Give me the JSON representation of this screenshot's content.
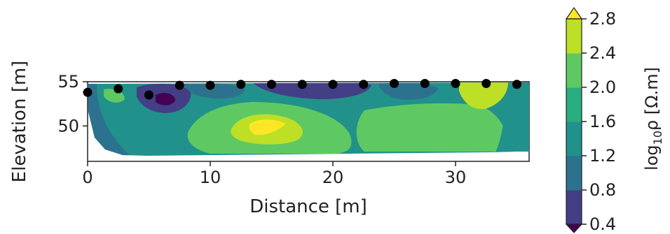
{
  "chart_data": {
    "type": "heatmap",
    "subtype": "filled-contour-resistivity-section",
    "xlabel": "Distance [m]",
    "ylabel": "Elevation [m]",
    "xlim": [
      0,
      36
    ],
    "ylim": [
      46,
      55
    ],
    "x_ticks": [
      0,
      10,
      20,
      30
    ],
    "y_ticks": [
      50,
      55
    ],
    "x_tick_labels": [
      "0",
      "10",
      "20",
      "30"
    ],
    "y_tick_labels": [
      "50",
      "55"
    ],
    "electrodes": {
      "marker": "black-dot",
      "x": [
        0,
        2.5,
        5,
        7.5,
        10,
        12.5,
        15,
        17.5,
        20,
        22.5,
        25,
        27.5,
        30,
        32.5,
        35
      ],
      "y": [
        53.8,
        54.2,
        53.5,
        54.6,
        54.6,
        54.7,
        54.7,
        54.7,
        54.7,
        54.7,
        54.8,
        54.8,
        54.8,
        54.8,
        54.7
      ]
    },
    "colorbar": {
      "label_prefix": "log",
      "label_sub": "10",
      "label_suffix": "ρ [Ω.m]",
      "levels": [
        0.4,
        0.8,
        1.2,
        1.6,
        2.0,
        2.4,
        2.8
      ],
      "tick_labels": [
        "0.4",
        "0.8",
        "1.2",
        "1.6",
        "2.0",
        "2.4",
        "2.8"
      ],
      "extend": "both",
      "colors": [
        "#440154",
        "#433e85",
        "#2c728e",
        "#21918c",
        "#28ae80",
        "#5ec962",
        "#bddf26",
        "#fde725"
      ]
    },
    "regions": [
      {
        "name": "background",
        "value_band": "1.6-2.0"
      },
      {
        "name": "left-edge-low",
        "value_band": "1.2-1.6"
      },
      {
        "name": "left-shoulder-high",
        "value_band": "2.0-2.4"
      },
      {
        "name": "shallow-low-6m",
        "value_band": "0.8-1.2"
      },
      {
        "name": "shallow-low-6m-core",
        "value_band": "0.4-0.8"
      },
      {
        "name": "shallow-low-11m",
        "value_band": "1.2-1.6"
      },
      {
        "name": "shallow-low-20m",
        "value_band": "0.8-1.2"
      },
      {
        "name": "shallow-low-26m",
        "value_band": "1.2-1.6"
      },
      {
        "name": "central-body",
        "value_band": "2.0-2.4"
      },
      {
        "name": "central-body-core",
        "value_band": "2.4-2.8"
      },
      {
        "name": "central-body-peak",
        "value_band": ">2.8"
      },
      {
        "name": "right-body",
        "value_band": "2.0-2.4"
      },
      {
        "name": "right-top-high",
        "value_band": "2.4-2.8"
      },
      {
        "name": "right-edge-low",
        "value_band": "1.6-2.0"
      }
    ]
  }
}
